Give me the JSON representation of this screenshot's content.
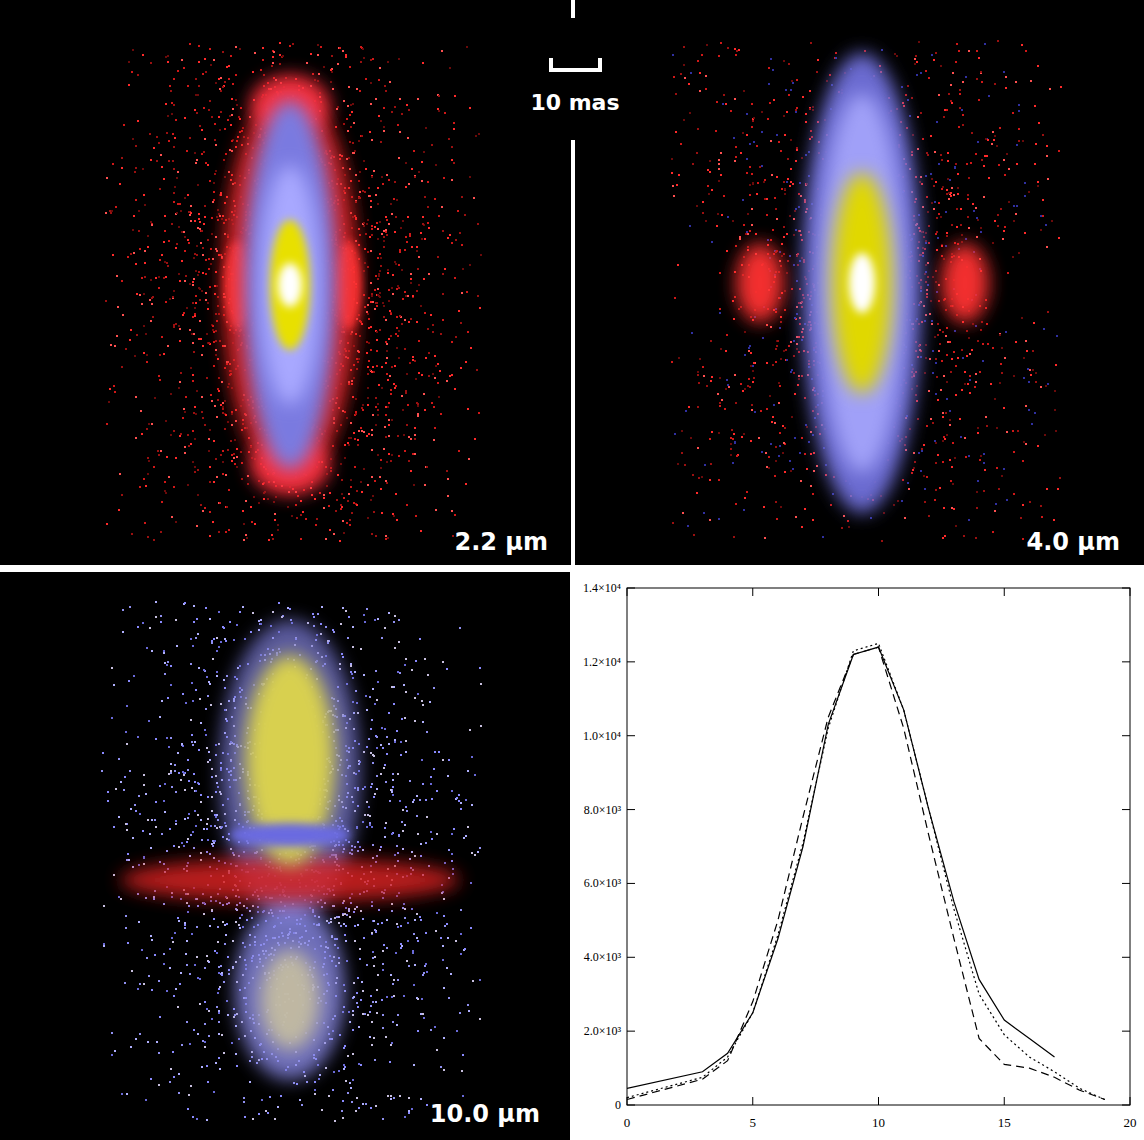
{
  "scale_bar": "10 mas",
  "images": [
    {
      "label": "2.2 µm"
    },
    {
      "label": "4.0 µm"
    },
    {
      "label": "10.0 µm"
    }
  ],
  "chart_data": {
    "type": "line",
    "x": [
      0,
      3,
      4,
      5,
      6,
      7,
      8,
      9,
      10,
      11,
      12,
      13,
      14,
      15,
      16,
      17,
      18,
      19
    ],
    "xlim": [
      0,
      20
    ],
    "xticks": [
      0,
      5,
      10,
      15,
      20
    ],
    "ylim": [
      0,
      14000
    ],
    "yticks": [
      0,
      {
        "value": 2000,
        "label": "2.0×10³"
      },
      {
        "value": 4000,
        "label": "4.0×10³"
      },
      {
        "value": 6000,
        "label": "6.0×10³"
      },
      {
        "value": 8000,
        "label": "8.0×10³"
      },
      {
        "value": 10000,
        "label": "1.0×10⁴"
      },
      {
        "value": 12000,
        "label": "1.2×10⁴"
      },
      {
        "value": 14000,
        "label": "1.4×10⁴"
      }
    ],
    "series": [
      {
        "color": "#000000",
        "line_style": "solid",
        "values": [
          450,
          900,
          1400,
          2500,
          4500,
          7000,
          10300,
          12200,
          12400,
          10700,
          8000,
          5500,
          3400,
          2300,
          1800,
          1300,
          null,
          null
        ]
      },
      {
        "color": "#000000",
        "line_style": "dashed",
        "values": [
          150,
          700,
          1200,
          2800,
          5000,
          7800,
          10500,
          12200,
          12400,
          10200,
          7300,
          4500,
          1800,
          1100,
          1000,
          750,
          400,
          150
        ]
      },
      {
        "color": "#000000",
        "line_style": "dotted",
        "values": [
          200,
          750,
          1300,
          2500,
          4600,
          7100,
          10200,
          12300,
          12500,
          10700,
          8000,
          5300,
          3000,
          1900,
          1300,
          900,
          450,
          150
        ]
      }
    ]
  }
}
